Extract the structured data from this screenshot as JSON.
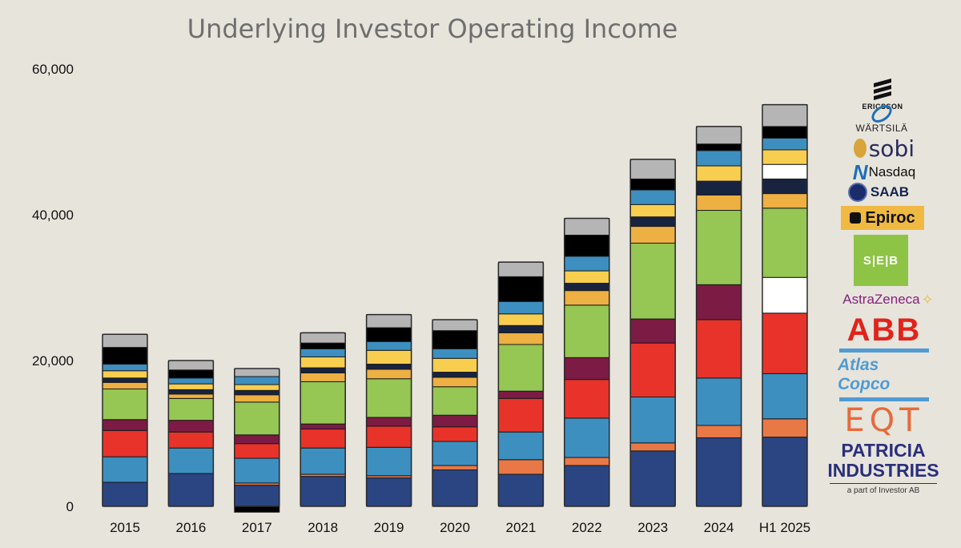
{
  "chart_data": {
    "type": "bar",
    "stacked": true,
    "title": "Underlying Investor Operating Income",
    "categories": [
      "2015",
      "2016",
      "2017",
      "2018",
      "2019",
      "2020",
      "2021",
      "2022",
      "2023",
      "2024",
      "H1 2025"
    ],
    "yticks": [
      "0",
      "20,000",
      "40,000",
      "60,000"
    ],
    "ylim": [
      0,
      60000
    ],
    "grid": false,
    "legend": "logo panel (right)",
    "series": [
      {
        "color": "#2a4581",
        "values": [
          3300,
          4500,
          2900,
          4100,
          3900,
          5000,
          4400,
          5600,
          7600,
          9400,
          9500
        ]
      },
      {
        "color": "#e97847",
        "values": [
          0,
          0,
          300,
          300,
          300,
          600,
          2000,
          1100,
          1100,
          1700,
          2500
        ]
      },
      {
        "color": "#3d8fc0",
        "values": [
          3500,
          3500,
          3400,
          3600,
          3900,
          3300,
          3800,
          5400,
          6300,
          6500,
          6200
        ]
      },
      {
        "color": "#e8332a",
        "values": [
          3600,
          2200,
          2000,
          2600,
          2900,
          2000,
          4600,
          5300,
          7400,
          8000,
          8300
        ]
      },
      {
        "color": "#7c1b44",
        "values": [
          1500,
          1600,
          1200,
          700,
          1200,
          1600,
          1000,
          3000,
          3300,
          4800,
          0
        ]
      },
      {
        "color": "#ffffff",
        "values": [
          0,
          0,
          0,
          0,
          0,
          0,
          0,
          0,
          0,
          0,
          4900
        ]
      },
      {
        "color": "#96c653",
        "values": [
          4200,
          3000,
          4500,
          5800,
          5300,
          3900,
          6400,
          7200,
          10400,
          10200,
          9500
        ]
      },
      {
        "color": "#eeb043",
        "values": [
          900,
          600,
          1000,
          1200,
          1300,
          1300,
          1600,
          2000,
          2300,
          2100,
          2000
        ]
      },
      {
        "color": "#18233f",
        "values": [
          600,
          600,
          600,
          700,
          700,
          700,
          1000,
          1000,
          1300,
          1900,
          2000
        ]
      },
      {
        "color": "#ffffff",
        "values": [
          0,
          0,
          0,
          0,
          0,
          0,
          0,
          0,
          0,
          0,
          2000
        ]
      },
      {
        "color": "#f7ce4f",
        "values": [
          1000,
          800,
          800,
          1500,
          1900,
          1900,
          1600,
          1700,
          1700,
          2100,
          2000
        ]
      },
      {
        "color": "#3d8fc0",
        "values": [
          900,
          800,
          1100,
          1100,
          1200,
          1300,
          1700,
          2000,
          2000,
          2100,
          1600
        ]
      },
      {
        "color": "#000000",
        "values": [
          2300,
          1100,
          -800,
          800,
          1900,
          2500,
          3400,
          2900,
          1500,
          900,
          1600
        ]
      },
      {
        "color": "#b5b5b5",
        "values": [
          1800,
          1300,
          1100,
          1400,
          1800,
          1500,
          2000,
          2300,
          2700,
          2400,
          3000
        ]
      }
    ]
  },
  "logos": {
    "ericsson": "ERICSSON",
    "wartsila": "WÄRTSILÄ",
    "sobi": "sobi",
    "nasdaq": "Nasdaq",
    "saab": "SAAB",
    "epiroc": "Epiroc",
    "seb": "S|E|B",
    "astrazeneca": "AstraZeneca",
    "abb": "ABB",
    "atlascopco": "Atlas Copco",
    "eqt": "EQT",
    "patricia_line1": "PATRICIA",
    "patricia_line2": "INDUSTRIES",
    "patricia_sub": "a part of Investor AB"
  }
}
